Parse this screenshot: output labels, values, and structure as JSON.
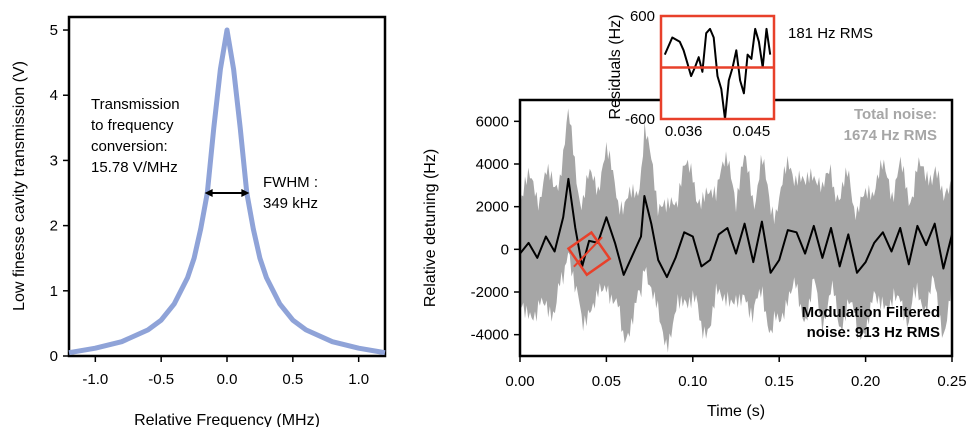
{
  "chart_data": [
    {
      "type": "line",
      "panel": "left",
      "xlabel": "Relative Frequency (MHz)",
      "ylabel": "Low finesse cavity transmission (V)",
      "xlim": [
        -1.2,
        1.2
      ],
      "ylim": [
        0,
        5.2
      ],
      "xticks": [
        "-1.0",
        "-0.5",
        "0.0",
        "0.5",
        "1.0"
      ],
      "xtick_values": [
        -1.0,
        -0.5,
        0.0,
        0.5,
        1.0
      ],
      "yticks": [
        "0",
        "1",
        "2",
        "3",
        "4",
        "5"
      ],
      "ytick_values": [
        0,
        1,
        2,
        3,
        4,
        5
      ],
      "series": [
        {
          "color": "#8fa3d8",
          "x": [
            -1.2,
            -1.0,
            -0.8,
            -0.6,
            -0.5,
            -0.4,
            -0.35,
            -0.3,
            -0.25,
            -0.2,
            -0.15,
            -0.1,
            -0.05,
            0.0,
            0.05,
            0.1,
            0.15,
            0.2,
            0.25,
            0.3,
            0.35,
            0.4,
            0.5,
            0.6,
            0.8,
            1.0,
            1.2
          ],
          "values": [
            0.05,
            0.12,
            0.22,
            0.4,
            0.55,
            0.8,
            1.0,
            1.2,
            1.5,
            1.95,
            2.5,
            3.5,
            4.4,
            5.0,
            4.4,
            3.5,
            2.5,
            1.95,
            1.5,
            1.2,
            1.0,
            0.8,
            0.55,
            0.4,
            0.22,
            0.12,
            0.05
          ]
        }
      ],
      "annotation": {
        "lines": [
          "Transmission",
          "to frequency",
          "conversion:",
          "15.78 V/MHz"
        ]
      },
      "fwhm": {
        "label_lines": [
          "FWHM :",
          "349 kHz"
        ],
        "from": -0.17,
        "to": 0.17,
        "level": 2.5
      }
    },
    {
      "type": "line",
      "panel": "right",
      "xlabel": "Time (s)",
      "ylabel": "Relative detuning (Hz)",
      "xlim": [
        0,
        0.25
      ],
      "ylim": [
        -5000,
        7000
      ],
      "xticks": [
        "0.00",
        "0.05",
        "0.10",
        "0.15",
        "0.20",
        "0.25"
      ],
      "xtick_values": [
        0,
        0.05,
        0.1,
        0.15,
        0.2,
        0.25
      ],
      "yticks": [
        "6000",
        "4000",
        "2000",
        "0",
        "-2000",
        "-4000"
      ],
      "ytick_values": [
        6000,
        4000,
        2000,
        0,
        -2000,
        -4000
      ],
      "total_noise": {
        "color": "#a6a6a6",
        "label_lines": [
          "Total noise:",
          "1674 Hz RMS"
        ]
      },
      "filtered_noise": {
        "color": "#000000",
        "label_lines": [
          "Modulation Filtered",
          "noise:  913 Hz RMS"
        ],
        "x": [
          0.0,
          0.005,
          0.01,
          0.015,
          0.02,
          0.025,
          0.028,
          0.032,
          0.036,
          0.04,
          0.045,
          0.05,
          0.055,
          0.06,
          0.065,
          0.07,
          0.072,
          0.076,
          0.08,
          0.085,
          0.09,
          0.095,
          0.1,
          0.105,
          0.11,
          0.115,
          0.12,
          0.125,
          0.13,
          0.135,
          0.14,
          0.145,
          0.15,
          0.155,
          0.16,
          0.165,
          0.17,
          0.175,
          0.18,
          0.185,
          0.19,
          0.195,
          0.2,
          0.205,
          0.21,
          0.215,
          0.22,
          0.225,
          0.23,
          0.235,
          0.24,
          0.245,
          0.25
        ],
        "values": [
          -200,
          300,
          -400,
          600,
          -100,
          1500,
          3300,
          1000,
          -800,
          400,
          300,
          1500,
          300,
          -1200,
          -300,
          600,
          2500,
          1200,
          -500,
          -1300,
          -400,
          800,
          600,
          -800,
          -500,
          700,
          1000,
          -200,
          1200,
          -600,
          1300,
          -1100,
          -500,
          900,
          800,
          -200,
          1100,
          -400,
          1000,
          -800,
          700,
          -1100,
          -600,
          300,
          800,
          -100,
          1000,
          -700,
          1100,
          200,
          1200,
          -900,
          700
        ]
      },
      "zoom_box": {
        "color": "#e8402a",
        "x": 0.04,
        "y": -200
      },
      "inset": {
        "ylabel": "Residuals (Hz)",
        "xlim": [
          0.033,
          0.048
        ],
        "ylim": [
          -600,
          600
        ],
        "xticks": [
          "0.036",
          "0.045"
        ],
        "xtick_values": [
          0.036,
          0.045
        ],
        "yticks": [
          "600",
          "-600"
        ],
        "ytick_values": [
          600,
          -600
        ],
        "frame_color": "#e8402a",
        "zero_line_color": "#e8402a",
        "label": "181 Hz RMS",
        "x": [
          0.0335,
          0.0345,
          0.0355,
          0.036,
          0.0365,
          0.037,
          0.0375,
          0.038,
          0.0385,
          0.039,
          0.0395,
          0.04,
          0.0405,
          0.041,
          0.0415,
          0.042,
          0.0425,
          0.043,
          0.0435,
          0.044,
          0.0445,
          0.045,
          0.0455,
          0.046,
          0.0465,
          0.047,
          0.0475
        ],
        "values": [
          150,
          350,
          300,
          200,
          50,
          -100,
          0,
          120,
          -50,
          400,
          450,
          350,
          -100,
          -250,
          -600,
          -150,
          0,
          200,
          -150,
          -300,
          150,
          100,
          450,
          300,
          0,
          450,
          150
        ]
      }
    }
  ]
}
